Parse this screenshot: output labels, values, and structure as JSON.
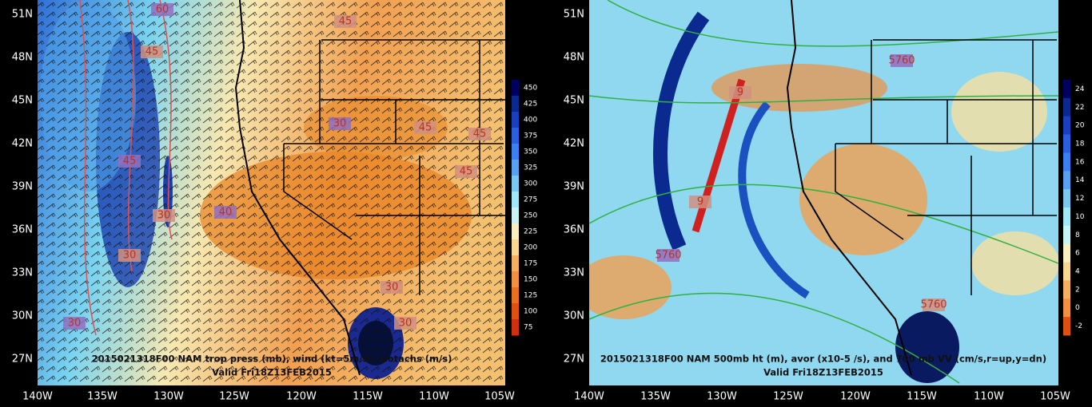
{
  "left_panel": {
    "lat_labels": [
      "51N",
      "48N",
      "45N",
      "42N",
      "39N",
      "36N",
      "33N",
      "30N",
      "27N"
    ],
    "lon_labels": [
      "140W",
      "135W",
      "130W",
      "125W",
      "120W",
      "115W",
      "110W",
      "105W"
    ],
    "colorbar_labels": [
      "450",
      "425",
      "400",
      "375",
      "350",
      "325",
      "300",
      "275",
      "250",
      "225",
      "200",
      "175",
      "150",
      "125",
      "100",
      "75"
    ],
    "contour_labels": [
      "60",
      "45",
      "45",
      "30",
      "45",
      "45",
      "45",
      "45",
      "30",
      "40",
      "30",
      "30",
      "30",
      "30"
    ],
    "caption": "2015021318F00 NAM trop press (mb), wind (kt=5m/s), isotachs (m/s)",
    "valid": "Valid Fri18Z13FEB2015"
  },
  "right_panel": {
    "lat_labels": [
      "51N",
      "48N",
      "45N",
      "42N",
      "39N",
      "36N",
      "33N",
      "30N",
      "27N"
    ],
    "lon_labels": [
      "140W",
      "135W",
      "130W",
      "125W",
      "120W",
      "115W",
      "110W",
      "105W"
    ],
    "colorbar_labels": [
      "24",
      "22",
      "20",
      "18",
      "16",
      "14",
      "12",
      "10",
      "8",
      "6",
      "4",
      "2",
      "0",
      "-2"
    ],
    "contour_labels": [
      "5760",
      "9",
      "9",
      "5760",
      "5760"
    ],
    "caption": "2015021318F00 NAM 500mb ht (m), avor (x10-5 /s), and 700 mb VV (cm/s,r=up,y=dn)",
    "valid": "Valid Fri18Z13FEB2015"
  }
}
